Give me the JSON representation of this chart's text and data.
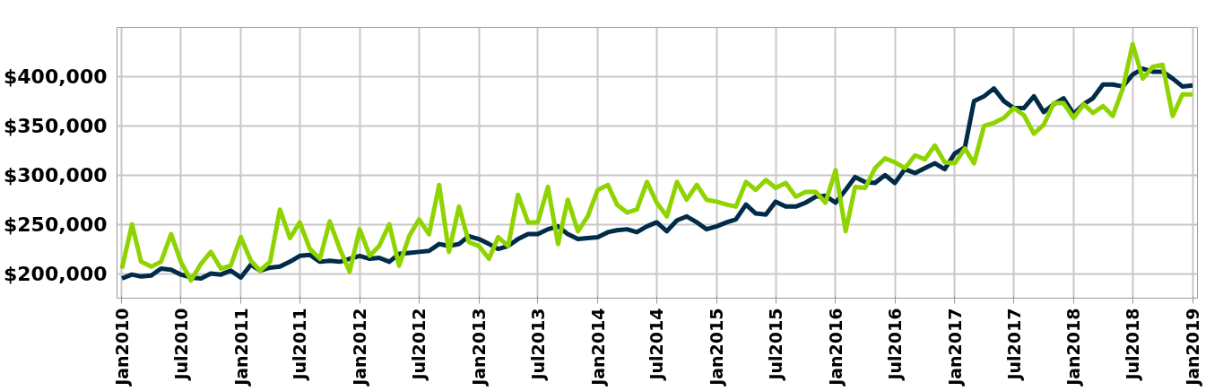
{
  "chart_data": {
    "type": "line",
    "x": [
      "2010-01",
      "2010-02",
      "2010-03",
      "2010-04",
      "2010-05",
      "2010-06",
      "2010-07",
      "2010-08",
      "2010-09",
      "2010-10",
      "2010-11",
      "2010-12",
      "2011-01",
      "2011-02",
      "2011-03",
      "2011-04",
      "2011-05",
      "2011-06",
      "2011-07",
      "2011-08",
      "2011-09",
      "2011-10",
      "2011-11",
      "2011-12",
      "2012-01",
      "2012-02",
      "2012-03",
      "2012-04",
      "2012-05",
      "2012-06",
      "2012-07",
      "2012-08",
      "2012-09",
      "2012-10",
      "2012-11",
      "2012-12",
      "2013-01",
      "2013-02",
      "2013-03",
      "2013-04",
      "2013-05",
      "2013-06",
      "2013-07",
      "2013-08",
      "2013-09",
      "2013-10",
      "2013-11",
      "2013-12",
      "2014-01",
      "2014-02",
      "2014-03",
      "2014-04",
      "2014-05",
      "2014-06",
      "2014-07",
      "2014-08",
      "2014-09",
      "2014-10",
      "2014-11",
      "2014-12",
      "2015-01",
      "2015-02",
      "2015-03",
      "2015-04",
      "2015-05",
      "2015-06",
      "2015-07",
      "2015-08",
      "2015-09",
      "2015-10",
      "2015-11",
      "2015-12",
      "2016-01",
      "2016-02",
      "2016-03",
      "2016-04",
      "2016-05",
      "2016-06",
      "2016-07",
      "2016-08",
      "2016-09",
      "2016-10",
      "2016-11",
      "2016-12",
      "2017-01",
      "2017-02",
      "2017-03",
      "2017-04",
      "2017-05",
      "2017-06",
      "2017-07",
      "2017-08",
      "2017-09",
      "2017-10",
      "2017-11",
      "2017-12",
      "2018-01",
      "2018-02",
      "2018-03",
      "2018-04",
      "2018-05",
      "2018-06",
      "2018-07",
      "2018-08",
      "2018-09",
      "2018-10",
      "2018-11",
      "2018-12",
      "2019-01"
    ],
    "series": [
      {
        "color": "#002b49",
        "values": [
          195000,
          199000,
          197000,
          198000,
          205000,
          204000,
          199000,
          196000,
          195000,
          200000,
          199000,
          203000,
          196000,
          209000,
          203000,
          206000,
          207000,
          212000,
          218000,
          219000,
          212000,
          213000,
          212000,
          215000,
          218000,
          215000,
          216000,
          212000,
          220000,
          221000,
          222000,
          223000,
          230000,
          228000,
          230000,
          238000,
          235000,
          230000,
          225000,
          228000,
          235000,
          240000,
          240000,
          245000,
          248000,
          240000,
          235000,
          236000,
          237000,
          242000,
          244000,
          245000,
          242000,
          248000,
          252000,
          243000,
          254000,
          258000,
          252000,
          245000,
          248000,
          252000,
          255000,
          270000,
          261000,
          260000,
          273000,
          268000,
          268000,
          272000,
          278000,
          279000,
          272000,
          285000,
          298000,
          293000,
          292000,
          300000,
          292000,
          306000,
          302000,
          307000,
          312000,
          306000,
          322000,
          328000,
          375000,
          380000,
          388000,
          375000,
          368000,
          368000,
          380000,
          364000,
          372000,
          378000,
          362000,
          372000,
          378000,
          392000,
          392000,
          390000,
          402000,
          408000,
          405000,
          405000,
          398000,
          390000,
          391000
        ]
      },
      {
        "color": "#8fd400",
        "values": [
          205000,
          250000,
          212000,
          207000,
          212000,
          240000,
          212000,
          193000,
          210000,
          222000,
          205000,
          208000,
          237000,
          213000,
          203000,
          212000,
          265000,
          236000,
          252000,
          225000,
          215000,
          253000,
          225000,
          202000,
          245000,
          218000,
          228000,
          250000,
          208000,
          238000,
          255000,
          240000,
          290000,
          222000,
          268000,
          232000,
          228000,
          215000,
          237000,
          228000,
          280000,
          252000,
          252000,
          288000,
          230000,
          275000,
          243000,
          258000,
          285000,
          290000,
          270000,
          262000,
          265000,
          293000,
          272000,
          258000,
          293000,
          275000,
          290000,
          275000,
          273000,
          270000,
          268000,
          293000,
          285000,
          295000,
          287000,
          292000,
          278000,
          283000,
          283000,
          272000,
          305000,
          243000,
          288000,
          287000,
          307000,
          317000,
          313000,
          307000,
          320000,
          316000,
          330000,
          313000,
          312000,
          327000,
          312000,
          350000,
          353000,
          358000,
          368000,
          361000,
          342000,
          351000,
          373000,
          373000,
          358000,
          372000,
          363000,
          370000,
          360000,
          388000,
          433000,
          398000,
          410000,
          412000,
          360000,
          382000,
          382000
        ]
      }
    ],
    "ylim": [
      175000,
      450000
    ],
    "yticks": [
      {
        "value": 200000,
        "label": "$200,000"
      },
      {
        "value": 250000,
        "label": "$250,000"
      },
      {
        "value": 300000,
        "label": "$300,000"
      },
      {
        "value": 350000,
        "label": "$350,000"
      },
      {
        "value": 400000,
        "label": "$400,000"
      }
    ],
    "xlim": [
      "2010-01",
      "2019-01"
    ],
    "xticks": [
      {
        "value": "2010-01",
        "label": "Jan2010"
      },
      {
        "value": "2010-07",
        "label": "Jul2010"
      },
      {
        "value": "2011-01",
        "label": "Jan2011"
      },
      {
        "value": "2011-07",
        "label": "Jul2011"
      },
      {
        "value": "2012-01",
        "label": "Jan2012"
      },
      {
        "value": "2012-07",
        "label": "Jul2012"
      },
      {
        "value": "2013-01",
        "label": "Jan2013"
      },
      {
        "value": "2013-07",
        "label": "Jul2013"
      },
      {
        "value": "2014-01",
        "label": "Jan2014"
      },
      {
        "value": "2014-07",
        "label": "Jul2014"
      },
      {
        "value": "2015-01",
        "label": "Jan2015"
      },
      {
        "value": "2015-07",
        "label": "Jul2015"
      },
      {
        "value": "2016-01",
        "label": "Jan2016"
      },
      {
        "value": "2016-07",
        "label": "Jul2016"
      },
      {
        "value": "2017-01",
        "label": "Jan2017"
      },
      {
        "value": "2017-07",
        "label": "Jul2017"
      },
      {
        "value": "2018-01",
        "label": "Jan2018"
      },
      {
        "value": "2018-07",
        "label": "Jul2018"
      },
      {
        "value": "2019-01",
        "label": "Jan2019"
      }
    ],
    "grid": true,
    "marker": "none",
    "line_style": "solid"
  }
}
